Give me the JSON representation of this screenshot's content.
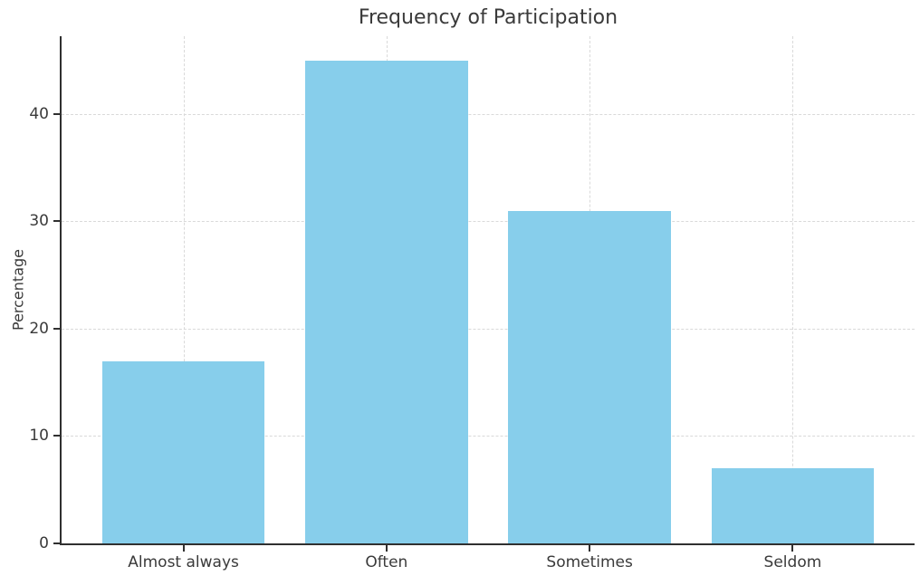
{
  "chart_data": {
    "type": "bar",
    "title": "Frequency of Participation",
    "categories": [
      "Almost always",
      "Often",
      "Sometimes",
      "Seldom"
    ],
    "values": [
      17,
      45,
      31,
      7
    ],
    "xlabel": "",
    "ylabel": "Percentage",
    "ylim": [
      0,
      47.25
    ],
    "yticks": [
      0,
      10,
      20,
      30,
      40
    ],
    "grid": true,
    "grid_style": "dashed",
    "legend": "none",
    "bar_color": "#87CEEB",
    "grid_color": "#d9d9d9",
    "spine_color": "#303030",
    "text_color": "#3a3a3a"
  }
}
